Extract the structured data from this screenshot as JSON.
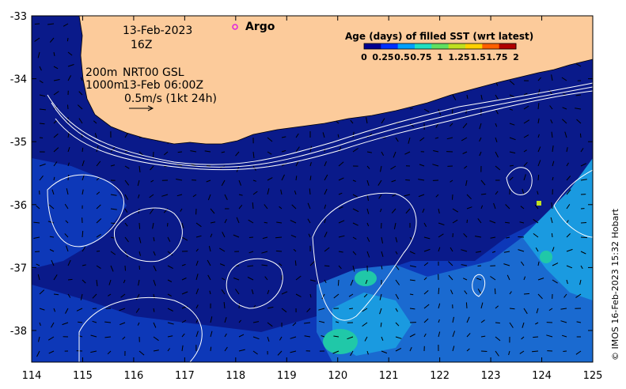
{
  "date_line": "13-Feb-2023",
  "time_line": "16Z",
  "argo_label": "Argo",
  "isobath_200": "200m",
  "isobath_1000": "1000m",
  "current_source": "NRT00 GSL",
  "current_time": "13-Feb 06:00Z",
  "vector_scale": "0.5m/s (1kt 24h)",
  "colorbar": {
    "title": "Age (days) of filled SST (wrt latest)",
    "tick_labels": [
      "0",
      "0.25",
      "0.5",
      "0.75",
      "1",
      "1.25",
      "1.5",
      "1.75",
      "2"
    ],
    "colors": [
      "#00008f",
      "#0030ff",
      "#00a0ff",
      "#20e0c0",
      "#60e060",
      "#c0e020",
      "#ffd000",
      "#ff6000",
      "#b00000"
    ]
  },
  "x_axis": {
    "ticks": [
      "114",
      "115",
      "116",
      "117",
      "118",
      "119",
      "120",
      "121",
      "122",
      "123",
      "124",
      "125"
    ]
  },
  "y_axis": {
    "ticks": [
      "-33",
      "-34",
      "-35",
      "-36",
      "-37",
      "-38"
    ]
  },
  "credit": "© IMOS 16-Feb-2023 15:32 Hobart",
  "colors": {
    "land": "#fccb9b",
    "sea_deep": "#0a1a8a",
    "sea_mid": "#0d38b8",
    "sea_light": "#1a8ad8",
    "argo_marker": "#e020e0"
  }
}
